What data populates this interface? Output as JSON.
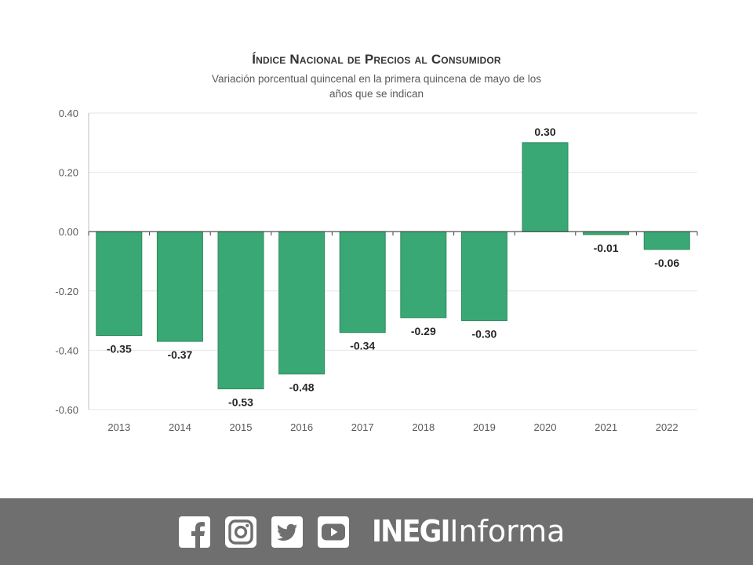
{
  "chart_data": {
    "type": "bar",
    "title": "Índice Nacional de Precios al Consumidor",
    "subtitle": "Variación porcentual quincenal en la primera quincena de mayo de los años que se indican",
    "categories": [
      "2013",
      "2014",
      "2015",
      "2016",
      "2017",
      "2018",
      "2019",
      "2020",
      "2021",
      "2022"
    ],
    "values": [
      -0.35,
      -0.37,
      -0.53,
      -0.48,
      -0.34,
      -0.29,
      -0.3,
      0.3,
      -0.01,
      -0.06
    ],
    "value_labels": [
      "-0.35",
      "-0.37",
      "-0.53",
      "-0.48",
      "-0.34",
      "-0.29",
      "-0.30",
      "0.30",
      "-0.01",
      "-0.06"
    ],
    "y_ticks": [
      "0.40",
      "0.20",
      "0.00",
      "-0.20",
      "-0.40",
      "-0.60"
    ],
    "y_tick_values": [
      0.4,
      0.2,
      0.0,
      -0.2,
      -0.4,
      -0.6
    ],
    "ylim": [
      -0.6,
      0.4
    ],
    "grid": true,
    "bar_color": "#3aa874",
    "bar_edge_color": "#2e8a5e"
  },
  "footer": {
    "brand_bold": "INEGI",
    "brand_light": "Informa",
    "social_icons": [
      "facebook-icon",
      "instagram-icon",
      "twitter-icon",
      "youtube-icon"
    ],
    "background_color": "#6f6f6f"
  }
}
